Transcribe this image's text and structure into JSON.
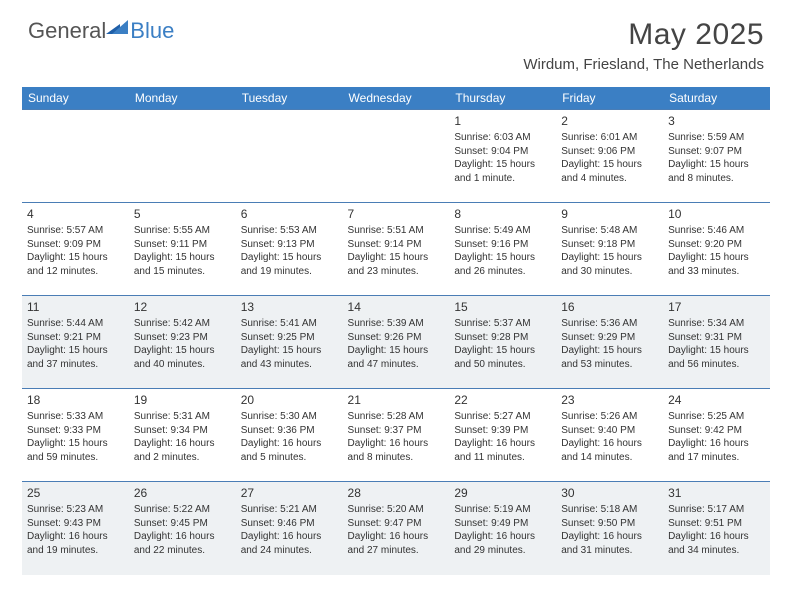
{
  "brand": {
    "general": "General",
    "blue": "Blue"
  },
  "title": "May 2025",
  "location": "Wirdum, Friesland, The Netherlands",
  "colors": {
    "header_bg": "#3b7fc4",
    "header_text": "#ffffff",
    "row_border": "#4a7db5",
    "shaded_bg": "#eef1f3",
    "text": "#333333",
    "title_text": "#444444"
  },
  "day_headers": [
    "Sunday",
    "Monday",
    "Tuesday",
    "Wednesday",
    "Thursday",
    "Friday",
    "Saturday"
  ],
  "weeks": [
    [
      null,
      null,
      null,
      null,
      {
        "n": "1",
        "sunrise": "6:03 AM",
        "sunset": "9:04 PM",
        "daylight": "15 hours and 1 minute."
      },
      {
        "n": "2",
        "sunrise": "6:01 AM",
        "sunset": "9:06 PM",
        "daylight": "15 hours and 4 minutes."
      },
      {
        "n": "3",
        "sunrise": "5:59 AM",
        "sunset": "9:07 PM",
        "daylight": "15 hours and 8 minutes."
      }
    ],
    [
      {
        "n": "4",
        "sunrise": "5:57 AM",
        "sunset": "9:09 PM",
        "daylight": "15 hours and 12 minutes."
      },
      {
        "n": "5",
        "sunrise": "5:55 AM",
        "sunset": "9:11 PM",
        "daylight": "15 hours and 15 minutes."
      },
      {
        "n": "6",
        "sunrise": "5:53 AM",
        "sunset": "9:13 PM",
        "daylight": "15 hours and 19 minutes."
      },
      {
        "n": "7",
        "sunrise": "5:51 AM",
        "sunset": "9:14 PM",
        "daylight": "15 hours and 23 minutes."
      },
      {
        "n": "8",
        "sunrise": "5:49 AM",
        "sunset": "9:16 PM",
        "daylight": "15 hours and 26 minutes."
      },
      {
        "n": "9",
        "sunrise": "5:48 AM",
        "sunset": "9:18 PM",
        "daylight": "15 hours and 30 minutes."
      },
      {
        "n": "10",
        "sunrise": "5:46 AM",
        "sunset": "9:20 PM",
        "daylight": "15 hours and 33 minutes."
      }
    ],
    [
      {
        "n": "11",
        "sunrise": "5:44 AM",
        "sunset": "9:21 PM",
        "daylight": "15 hours and 37 minutes."
      },
      {
        "n": "12",
        "sunrise": "5:42 AM",
        "sunset": "9:23 PM",
        "daylight": "15 hours and 40 minutes."
      },
      {
        "n": "13",
        "sunrise": "5:41 AM",
        "sunset": "9:25 PM",
        "daylight": "15 hours and 43 minutes."
      },
      {
        "n": "14",
        "sunrise": "5:39 AM",
        "sunset": "9:26 PM",
        "daylight": "15 hours and 47 minutes."
      },
      {
        "n": "15",
        "sunrise": "5:37 AM",
        "sunset": "9:28 PM",
        "daylight": "15 hours and 50 minutes."
      },
      {
        "n": "16",
        "sunrise": "5:36 AM",
        "sunset": "9:29 PM",
        "daylight": "15 hours and 53 minutes."
      },
      {
        "n": "17",
        "sunrise": "5:34 AM",
        "sunset": "9:31 PM",
        "daylight": "15 hours and 56 minutes."
      }
    ],
    [
      {
        "n": "18",
        "sunrise": "5:33 AM",
        "sunset": "9:33 PM",
        "daylight": "15 hours and 59 minutes."
      },
      {
        "n": "19",
        "sunrise": "5:31 AM",
        "sunset": "9:34 PM",
        "daylight": "16 hours and 2 minutes."
      },
      {
        "n": "20",
        "sunrise": "5:30 AM",
        "sunset": "9:36 PM",
        "daylight": "16 hours and 5 minutes."
      },
      {
        "n": "21",
        "sunrise": "5:28 AM",
        "sunset": "9:37 PM",
        "daylight": "16 hours and 8 minutes."
      },
      {
        "n": "22",
        "sunrise": "5:27 AM",
        "sunset": "9:39 PM",
        "daylight": "16 hours and 11 minutes."
      },
      {
        "n": "23",
        "sunrise": "5:26 AM",
        "sunset": "9:40 PM",
        "daylight": "16 hours and 14 minutes."
      },
      {
        "n": "24",
        "sunrise": "5:25 AM",
        "sunset": "9:42 PM",
        "daylight": "16 hours and 17 minutes."
      }
    ],
    [
      {
        "n": "25",
        "sunrise": "5:23 AM",
        "sunset": "9:43 PM",
        "daylight": "16 hours and 19 minutes."
      },
      {
        "n": "26",
        "sunrise": "5:22 AM",
        "sunset": "9:45 PM",
        "daylight": "16 hours and 22 minutes."
      },
      {
        "n": "27",
        "sunrise": "5:21 AM",
        "sunset": "9:46 PM",
        "daylight": "16 hours and 24 minutes."
      },
      {
        "n": "28",
        "sunrise": "5:20 AM",
        "sunset": "9:47 PM",
        "daylight": "16 hours and 27 minutes."
      },
      {
        "n": "29",
        "sunrise": "5:19 AM",
        "sunset": "9:49 PM",
        "daylight": "16 hours and 29 minutes."
      },
      {
        "n": "30",
        "sunrise": "5:18 AM",
        "sunset": "9:50 PM",
        "daylight": "16 hours and 31 minutes."
      },
      {
        "n": "31",
        "sunrise": "5:17 AM",
        "sunset": "9:51 PM",
        "daylight": "16 hours and 34 minutes."
      }
    ]
  ],
  "shaded_weeks": [
    2,
    4
  ],
  "labels": {
    "sunrise": "Sunrise: ",
    "sunset": "Sunset: ",
    "daylight": "Daylight: "
  }
}
